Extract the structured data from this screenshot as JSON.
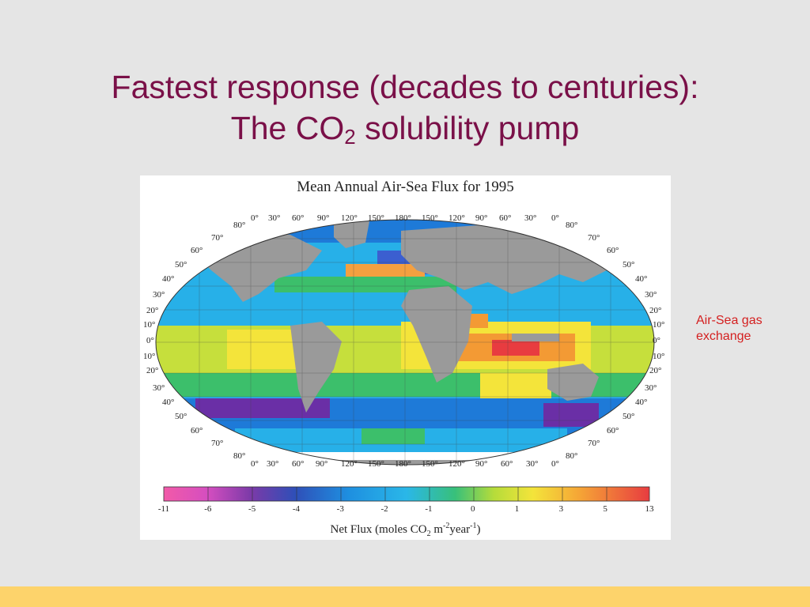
{
  "slide": {
    "title_line1": "Fastest response (decades to centuries):",
    "title_line2_prefix": "The CO",
    "title_line2_sub": "2",
    "title_line2_suffix": " solubility pump"
  },
  "side_note": "Air-Sea gas exchange",
  "figure": {
    "title": "Mean Annual Air-Sea Flux for 1995",
    "scale_ticks": [
      "-11",
      "-6",
      "-5",
      "-4",
      "-3",
      "-2",
      "-1",
      "0",
      "1",
      "3",
      "5",
      "13"
    ],
    "scale_caption": {
      "prefix": "Net Flux (moles CO",
      "sub": "2",
      "middle": " m",
      "sup1": "-2",
      "suffix": "year",
      "sup2": "-1",
      "end": ")"
    },
    "colors": {
      "land": "#9a9a9a",
      "ocean_strong_sink": "#6a2fa6",
      "sink": "#1e7ad8",
      "weak_sink": "#27b0e8",
      "neutral": "#3cbf6b",
      "weak_source": "#c6df3c",
      "source": "#f4e43a",
      "strong_source": "#f39a34",
      "max_source": "#e83c40"
    }
  }
}
